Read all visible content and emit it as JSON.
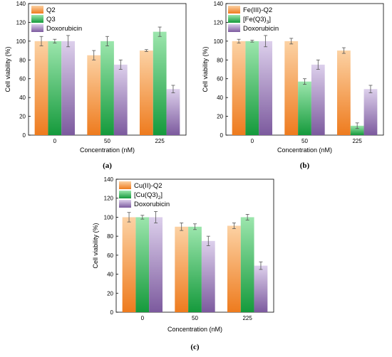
{
  "colors": {
    "orange_top": "#fcd2a4",
    "orange_bottom": "#ee7b1e",
    "green_top": "#9ce6ad",
    "green_bottom": "#159a3c",
    "purple_top": "#ddd0ec",
    "purple_bottom": "#7c5a9e",
    "error_bar": "#555555"
  },
  "chart_data": [
    {
      "panel": "(a)",
      "type": "bar",
      "categories": [
        "0",
        "50",
        "225"
      ],
      "xlabel": "Concentration (nM)",
      "ylabel": "Cell viability (%)",
      "ylim": [
        0,
        140
      ],
      "yticks": [
        0,
        20,
        40,
        60,
        80,
        100,
        120,
        140
      ],
      "legend_position": "top-left",
      "series": [
        {
          "name": "Q2",
          "color": "orange",
          "values": [
            100,
            85,
            90
          ],
          "errors": [
            5,
            5,
            1
          ]
        },
        {
          "name": "Q3",
          "color": "green",
          "values": [
            100,
            100,
            110
          ],
          "errors": [
            2,
            5,
            5
          ]
        },
        {
          "name": "Doxorubicin",
          "color": "purple",
          "values": [
            100,
            75,
            49
          ],
          "errors": [
            6,
            5,
            4
          ]
        }
      ]
    },
    {
      "panel": "(b)",
      "type": "bar",
      "categories": [
        "0",
        "50",
        "225"
      ],
      "xlabel": "Concentration (nM)",
      "ylabel": "Cell viability (%)",
      "ylim": [
        0,
        140
      ],
      "yticks": [
        0,
        20,
        40,
        60,
        80,
        100,
        120,
        140
      ],
      "legend_position": "top-left",
      "series": [
        {
          "name": "Fe(III)-Q2",
          "color": "orange",
          "values": [
            100,
            100,
            90
          ],
          "errors": [
            2,
            3,
            3
          ]
        },
        {
          "name": "[Fe(Q3)3]",
          "name_main": "[Fe(Q3)",
          "name_sub": "3",
          "name_tail": "]",
          "color": "green",
          "values": [
            100,
            57,
            10
          ],
          "errors": [
            1,
            3,
            3
          ]
        },
        {
          "name": "Doxorubicin",
          "color": "purple",
          "values": [
            100,
            75,
            49
          ],
          "errors": [
            6,
            5,
            4
          ]
        }
      ]
    },
    {
      "panel": "(c)",
      "type": "bar",
      "categories": [
        "0",
        "50",
        "225"
      ],
      "xlabel": "Concentration (nM)",
      "ylabel": "Cell viability (%)",
      "ylim": [
        0,
        140
      ],
      "yticks": [
        0,
        20,
        40,
        60,
        80,
        100,
        120,
        140
      ],
      "legend_position": "top-left",
      "series": [
        {
          "name": "Cu(II)-Q2",
          "color": "orange",
          "values": [
            100,
            90,
            91
          ],
          "errors": [
            5,
            4,
            3
          ]
        },
        {
          "name": "[Cu(Q3)2]",
          "name_main": "[Cu(Q3)",
          "name_sub": "2",
          "name_tail": "]",
          "color": "green",
          "values": [
            100,
            90,
            100
          ],
          "errors": [
            2,
            3,
            3
          ]
        },
        {
          "name": "Doxorubicin",
          "color": "purple",
          "values": [
            100,
            75,
            49
          ],
          "errors": [
            6,
            5,
            4
          ]
        }
      ]
    }
  ]
}
